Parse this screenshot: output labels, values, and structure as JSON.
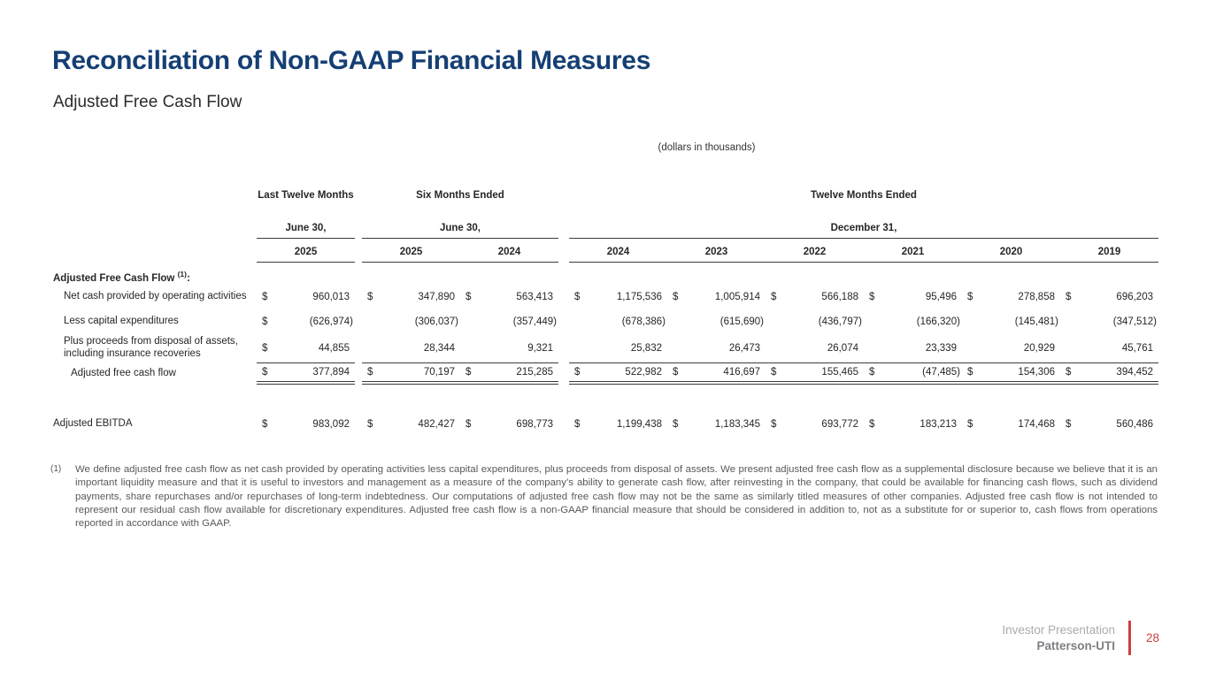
{
  "slide": {
    "title": "Reconciliation of Non-GAAP Financial Measures",
    "subtitle": "Adjusted Free Cash Flow",
    "units_note": "(dollars in thousands)"
  },
  "table": {
    "dollar": "$",
    "groups": [
      {
        "title": "Last Twelve Months",
        "date": "June 30,",
        "years": [
          "2025"
        ]
      },
      {
        "title": "Six Months Ended",
        "date": "June 30,",
        "years": [
          "2025",
          "2024"
        ]
      },
      {
        "title": "Twelve Months Ended",
        "date": "December 31,",
        "years": [
          "2024",
          "2023",
          "2022",
          "2021",
          "2020",
          "2019"
        ]
      }
    ],
    "section": {
      "label": "Adjusted Free Cash Flow",
      "footnote_ref": "(1)",
      "colon": ":"
    },
    "rows": [
      {
        "label": "Net cash provided by operating activities",
        "values": [
          "960,013",
          "347,890",
          "563,413",
          "1,175,536",
          "1,005,914",
          "566,188",
          "95,496",
          "278,858",
          "696,203"
        ]
      },
      {
        "label": "Less capital expenditures",
        "values": [
          "(626,974)",
          "(306,037)",
          "(357,449)",
          "(678,386)",
          "(615,690)",
          "(436,797)",
          "(166,320)",
          "(145,481)",
          "(347,512)"
        ]
      },
      {
        "label": "Plus proceeds from disposal of assets, including insurance recoveries",
        "values": [
          "44,855",
          "28,344",
          "9,321",
          "25,832",
          "26,473",
          "26,074",
          "23,339",
          "20,929",
          "45,761"
        ]
      },
      {
        "label": "Adjusted free cash flow",
        "values": [
          "377,894",
          "70,197",
          "215,285",
          "522,982",
          "416,697",
          "155,465",
          "(47,485)",
          "154,306",
          "394,452"
        ]
      }
    ],
    "ebitda": {
      "label": "Adjusted EBITDA",
      "values": [
        "983,092",
        "482,427",
        "698,773",
        "1,199,438",
        "1,183,345",
        "693,772",
        "183,213",
        "174,468",
        "560,486"
      ]
    }
  },
  "footnote": {
    "marker": "(1)",
    "text": "We define adjusted free cash flow as net cash provided by operating activities less capital expenditures, plus proceeds from disposal of assets. We present adjusted free cash flow as a supplemental disclosure because we believe that it is an important liquidity measure and that it is useful to investors and management as a measure of the company’s ability to generate cash flow, after reinvesting in the company, that could be available for financing cash flows, such as dividend payments, share repurchases and/or repurchases of long-term indebtedness. Our computations of adjusted free cash flow may not be the same as similarly titled measures of other companies. Adjusted free cash flow is not intended to represent our residual cash flow available for discretionary expenditures. Adjusted free cash flow is a non-GAAP financial measure that should be considered in addition to, not as a substitute for or superior to, cash flows from operations reported in accordance with GAAP."
  },
  "footer": {
    "presentation": "Investor Presentation",
    "company": "Patterson-UTI",
    "page": "28"
  },
  "colors": {
    "accent_blue": "#153F74",
    "accent_red": "#CF3E3E"
  }
}
